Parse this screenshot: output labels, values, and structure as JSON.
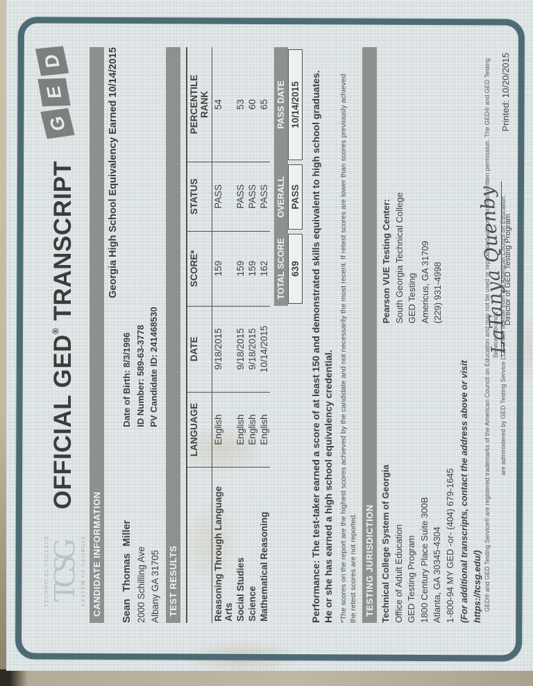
{
  "logo_tcsg": {
    "top": "TECHNICAL  COLLEGE",
    "main": "TCSG",
    "bottom": "SYSTEM  OF  GEORGIA"
  },
  "title": {
    "pre": "OFFICIAL GED",
    "sup": "®",
    "post": " TRANSCRIPT"
  },
  "ged_logo": {
    "letters": [
      "G",
      "E",
      "D"
    ]
  },
  "sections": {
    "candidate_information": "CANDIDATE INFORMATION",
    "test_results": "TEST RESULTS",
    "testing_jurisdiction": "TESTING JURISDICTION"
  },
  "candidate": {
    "name": "Sean Thomas  Miller",
    "address1": "2000 Schilling Ave",
    "address2": "Albany GA 31705",
    "dob": "Date of Birth:  8/3/1996",
    "id_number": "ID Number: 589-63-3778",
    "pv_id": "PV Candidate ID: 241468530",
    "equivalency_line": "Georgia High School Equivalency Earned 10/14/2015"
  },
  "table": {
    "headers": {
      "language": "LANGUAGE",
      "date": "DATE",
      "score": "SCORE*",
      "status": "STATUS",
      "percentile_1": "PERCENTILE",
      "percentile_2": "RANK"
    },
    "rows": [
      {
        "subject": "Reasoning Through Language Arts",
        "language": "English",
        "date": "9/18/2015",
        "score": "159",
        "status": "PASS",
        "percentile": "54"
      },
      {
        "subject": "Social Studies",
        "language": "English",
        "date": "9/18/2015",
        "score": "159",
        "status": "PASS",
        "percentile": "53"
      },
      {
        "subject": "Science",
        "language": "English",
        "date": "9/18/2015",
        "score": "159",
        "status": "PASS",
        "percentile": "60"
      },
      {
        "subject": "Mathematical Reasoning",
        "language": "English",
        "date": "10/14/2015",
        "score": "162",
        "status": "PASS",
        "percentile": "65"
      }
    ]
  },
  "summary": {
    "total_score_label": "TOTAL SCORE",
    "total_score": "639",
    "overall_label": "OVERALL",
    "overall": "PASS",
    "pass_date_label": "PASS DATE",
    "pass_date": "10/14/2015"
  },
  "performance": "Performance: The test-taker earned a score of at least 150 and demonstrated skills equivalent to high school graduates.  He or she has earned a high school equivalency credential.",
  "footnote": "*The scores on the report are the highest scores achieved by the candidate and not necessarily the most recent.  If retest scores are lower than scores previously achieved the retest scores are not reported.",
  "jurisdiction": {
    "org": "Technical College System of Georgia",
    "line1": "Office of Adult Education",
    "line2": "GED Testing Program",
    "line3": "1800 Century Place Suite 300B",
    "line4": "Atlanta, GA 30345-4304",
    "line5": "1-800-94 MY GED  -or-  (404) 679-1645",
    "note": "(For additional transcripts, contact the address above or visit https://tcsg.edu/)"
  },
  "test_center": {
    "heading": "Pearson VUE Testing Center:",
    "line1": "South Georgia Technical College",
    "line2": "GED Testing",
    "line3": "Americus, GA  31709",
    "line4": "(229) 931-4998"
  },
  "signature": {
    "name": "LaTanya Quenby",
    "title": "Director of GED Testing Program"
  },
  "printed": "Printed: 10/20/2015",
  "disclaimer": {
    "line1": "GED® and GED Testing Service® are registered trademarks of the American Council on Education and may not be used or reproduced without express written permission. The GED® and GED Testing Service® brands",
    "line2": "are administered by GED Testing Service LLC under license from the American Council on Education."
  },
  "colors": {
    "paper": "#dde3e4",
    "frame": "#4e6b75",
    "section_bar": "#8d918f",
    "ink": "#3d4241"
  }
}
